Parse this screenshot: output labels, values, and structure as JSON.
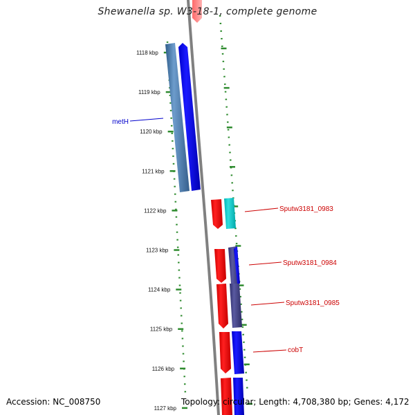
{
  "title": "Shewanella sp. W3-18-1, complete genome",
  "footer": {
    "accession": "Accession: NC_008750",
    "topology": "Topology: circular; Length: 4,708,380 bp; Genes: 4,172"
  },
  "ticks": [
    "1118 kbp",
    "1119 kbp",
    "1120 kbp",
    "1121 kbp",
    "1122 kbp",
    "1123 kbp",
    "1124 kbp",
    "1125 kbp",
    "1126 kbp",
    "1127 kbp"
  ],
  "gene_labels": [
    {
      "text": "metH",
      "color": "#0000cc"
    },
    {
      "text": "Sputw3181_0983",
      "color": "#cc0000"
    },
    {
      "text": "Sputw3181_0984",
      "color": "#cc0000"
    },
    {
      "text": "Sputw3181_0985",
      "color": "#cc0000"
    },
    {
      "text": "cobT",
      "color": "#cc0000"
    }
  ],
  "colors": {
    "backbone": "#808080",
    "forward_gene": "#0000ff",
    "reverse_gene": "#ff0000",
    "tick_marks": "#2e8b2e",
    "tick_text": "#111111"
  }
}
